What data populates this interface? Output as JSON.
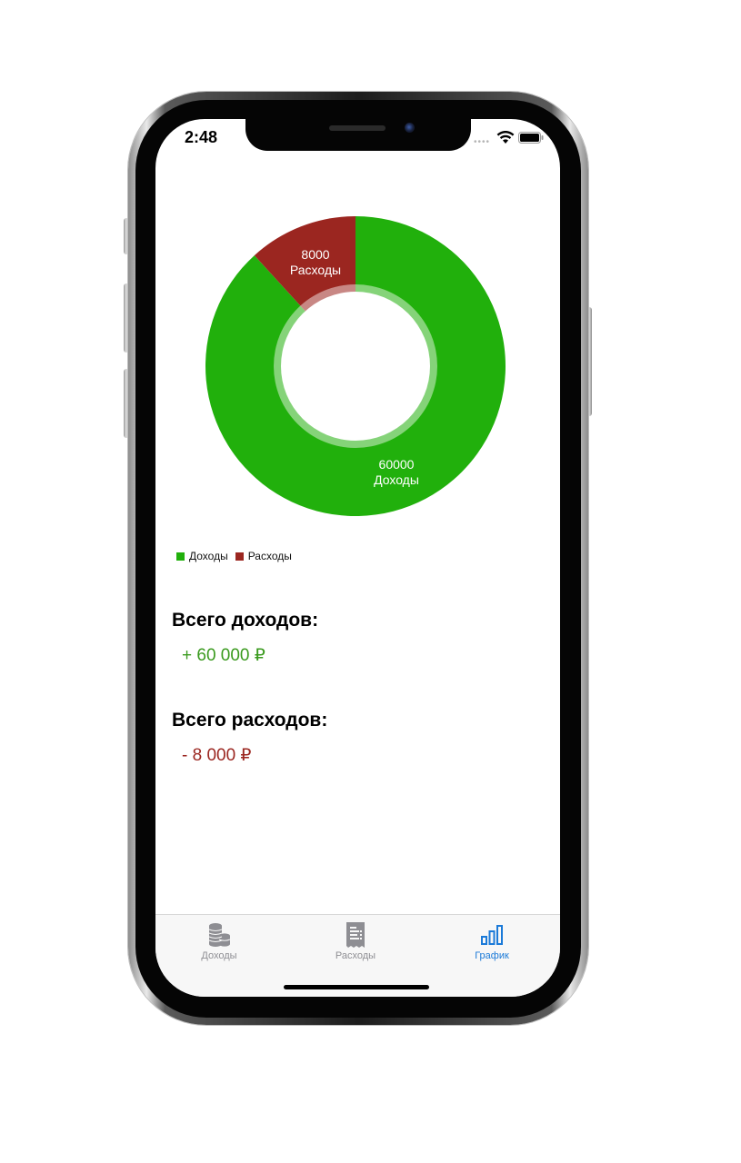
{
  "status_bar": {
    "time": "2:48",
    "signal_icon": "cellular-dots-icon",
    "wifi_icon": "wifi-icon",
    "battery_icon": "battery-icon"
  },
  "colors": {
    "income": "#21b00c",
    "expense": "#9b2620",
    "accent": "#1b7ad8",
    "tab_inactive": "#8e8e93"
  },
  "chart_data": {
    "type": "pie",
    "donut": true,
    "categories": [
      "Доходы",
      "Расходы"
    ],
    "values": [
      60000,
      8000
    ],
    "slice_labels": [
      {
        "value": "60000",
        "name": "Доходы"
      },
      {
        "value": "8000",
        "name": "Расходы"
      }
    ],
    "colors": [
      "#21b00c",
      "#9b2620"
    ],
    "legend_position": "bottom-left"
  },
  "legend": [
    {
      "label": "Доходы"
    },
    {
      "label": "Расходы"
    }
  ],
  "summary": {
    "income_title": "Всего доходов:",
    "income_value": "+ 60 000 ₽",
    "expense_title": "Всего расходов:",
    "expense_value": "- 8 000 ₽"
  },
  "tabbar": {
    "tabs": [
      {
        "label": "Доходы",
        "icon": "coins-stack-icon",
        "active": false
      },
      {
        "label": "Расходы",
        "icon": "receipt-icon",
        "active": false
      },
      {
        "label": "График",
        "icon": "bar-chart-icon",
        "active": true
      }
    ]
  }
}
